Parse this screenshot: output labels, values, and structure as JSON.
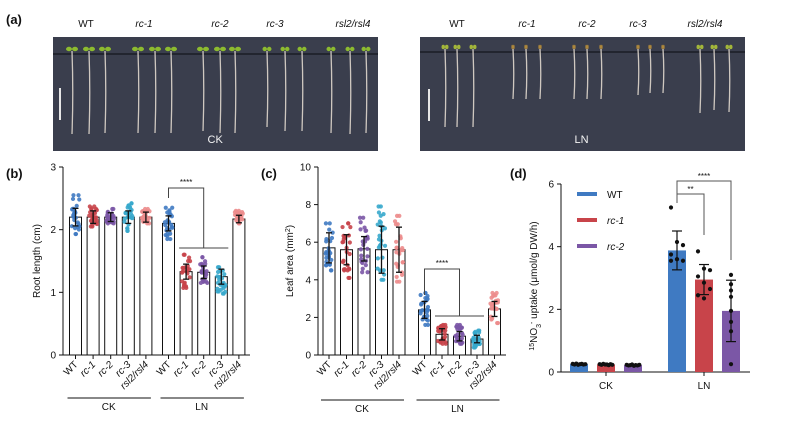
{
  "figure": {
    "panel_labels": [
      "(a)",
      "(b)",
      "(c)",
      "(d)"
    ],
    "photos": [
      {
        "condition": "CK",
        "genotypes": [
          "WT",
          "rc-1",
          "rc-2",
          "rc-3",
          "rsl2/rsl4"
        ]
      },
      {
        "condition": "LN",
        "genotypes": [
          "WT",
          "rc-1",
          "rc-2",
          "rc-3",
          "rsl2/rsl4"
        ]
      }
    ]
  },
  "colors": {
    "WT": "#3f7ac2",
    "rc-1": "#c8444a",
    "rc-2": "#7b57a6",
    "rc-3": "#37a9cc",
    "rsl2/rsl4": "#ec8c8c",
    "plate": "#3a3e4d",
    "seedling_leaf": "#8dbb2f",
    "root": "#cfc8c0"
  },
  "chart_data": [
    {
      "id": "b",
      "type": "bar",
      "title": "",
      "xlabel": "",
      "ylabel": "Root length (cm)",
      "ylim": [
        0,
        3
      ],
      "yticks": [
        0,
        1,
        2,
        3
      ],
      "categories": [
        "WT",
        "rc-1",
        "rc-2",
        "rc-3",
        "rsl2/rsl4",
        "WT",
        "rc-1",
        "rc-2",
        "rc-3",
        "rsl2/rsl4"
      ],
      "groups": [
        {
          "label": "CK",
          "n": 5
        },
        {
          "label": "LN",
          "n": 5
        }
      ],
      "values": [
        2.2,
        2.2,
        2.2,
        2.2,
        2.2,
        2.1,
        1.33,
        1.32,
        1.25,
        2.17
      ],
      "error": [
        0.14,
        0.1,
        0.07,
        0.1,
        0.08,
        0.12,
        0.12,
        0.1,
        0.12,
        0.06
      ],
      "point_range": [
        [
          1.93,
          2.55
        ],
        [
          2.05,
          2.37
        ],
        [
          2.1,
          2.33
        ],
        [
          1.98,
          2.42
        ],
        [
          2.1,
          2.33
        ],
        [
          1.85,
          2.35
        ],
        [
          1.07,
          1.6
        ],
        [
          1.15,
          1.56
        ],
        [
          0.98,
          1.4
        ],
        [
          2.1,
          2.3
        ]
      ],
      "significance": [
        {
          "from": 5,
          "to": [
            6,
            7,
            8
          ],
          "label": "****"
        }
      ],
      "grid": false
    },
    {
      "id": "c",
      "type": "bar",
      "title": "",
      "xlabel": "",
      "ylabel": "Leaf area (mm2)",
      "ylim": [
        0,
        10
      ],
      "yticks": [
        0,
        2,
        4,
        6,
        8,
        10
      ],
      "categories": [
        "WT",
        "rc-1",
        "rc-2",
        "rc-3",
        "rsl2/rsl4",
        "WT",
        "rc-1",
        "rc-2",
        "rc-3",
        "rsl2/rsl4"
      ],
      "groups": [
        {
          "label": "CK",
          "n": 5
        },
        {
          "label": "LN",
          "n": 5
        }
      ],
      "values": [
        5.7,
        5.6,
        5.65,
        5.6,
        5.6,
        2.4,
        1.1,
        1.0,
        0.85,
        2.45
      ],
      "error": [
        0.8,
        0.8,
        0.65,
        1.25,
        1.2,
        0.45,
        0.3,
        0.25,
        0.2,
        0.4
      ],
      "point_range": [
        [
          4.5,
          7.0
        ],
        [
          4.1,
          7.0
        ],
        [
          4.4,
          7.3
        ],
        [
          4.0,
          7.9
        ],
        [
          3.9,
          7.4
        ],
        [
          1.6,
          3.3
        ],
        [
          0.6,
          1.6
        ],
        [
          0.6,
          1.6
        ],
        [
          0.4,
          1.3
        ],
        [
          1.7,
          3.3
        ]
      ],
      "significance": [
        {
          "from": 5,
          "to": [
            6,
            7,
            8
          ],
          "label": "****"
        }
      ],
      "grid": false
    },
    {
      "id": "d",
      "type": "bar",
      "title": "",
      "xlabel": "",
      "ylabel": "15NO3- uptake (μmol/g DW/h)",
      "ylim": [
        0,
        6
      ],
      "yticks": [
        0,
        2,
        4,
        6
      ],
      "categories": [
        "CK",
        "LN"
      ],
      "legend": {
        "position": "top-left",
        "entries": [
          "WT",
          "rc-1",
          "rc-2"
        ]
      },
      "series": [
        {
          "name": "WT",
          "values": [
            0.25,
            3.88
          ],
          "error": [
            0.03,
            0.62
          ],
          "points": [
            [
              0.26,
              0.24,
              0.27,
              0.23,
              0.25,
              0.26,
              0.24,
              0.25
            ],
            [
              5.25,
              4.15,
              4.05,
              3.75,
              3.6,
              3.55,
              3.55,
              3.6
            ]
          ]
        },
        {
          "name": "rc-1",
          "values": [
            0.24,
            2.95
          ],
          "error": [
            0.03,
            0.48
          ],
          "points": [
            [
              0.25,
              0.23,
              0.26,
              0.24,
              0.24,
              0.22,
              0.25,
              0.23
            ],
            [
              3.85,
              3.3,
              3.25,
              3.05,
              2.85,
              2.65,
              2.45,
              2.35
            ]
          ]
        },
        {
          "name": "rc-2",
          "values": [
            0.22,
            1.95
          ],
          "error": [
            0.02,
            0.98
          ],
          "points": [
            [
              0.23,
              0.21,
              0.22,
              0.24,
              0.2,
              0.22,
              0.21,
              0.23
            ],
            [
              3.1,
              2.8,
              2.6,
              2.4,
              1.95,
              1.6,
              1.3,
              0.25
            ]
          ]
        }
      ],
      "significance": [
        {
          "from": "LN/WT",
          "to": "LN/rc-1",
          "label": "**"
        },
        {
          "from": "LN/WT",
          "to": "LN/rc-2",
          "label": "****"
        }
      ],
      "grid": false
    }
  ]
}
